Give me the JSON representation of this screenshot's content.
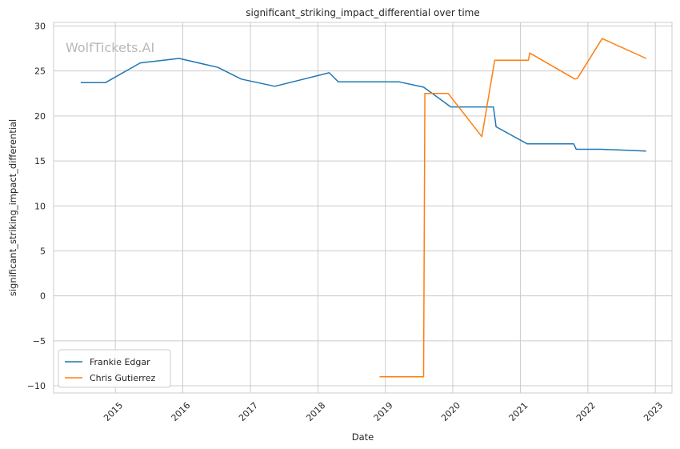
{
  "chart_data": {
    "type": "line",
    "title": "significant_striking_impact_differential over time",
    "xlabel": "Date",
    "ylabel": "significant_striking_impact_differential",
    "watermark": "WolfTickets.AI",
    "xlim": [
      "2014-02-01",
      "2023-04-01"
    ],
    "ylim": [
      -10.8,
      30.4
    ],
    "xticks": [
      "2015-01-01",
      "2016-01-01",
      "2017-01-01",
      "2018-01-01",
      "2019-01-01",
      "2020-01-01",
      "2021-01-01",
      "2022-01-01",
      "2023-01-01"
    ],
    "xtick_labels": [
      "2015",
      "2016",
      "2017",
      "2018",
      "2019",
      "2020",
      "2021",
      "2022",
      "2023"
    ],
    "yticks": [
      -10,
      -5,
      0,
      5,
      10,
      15,
      20,
      25,
      30
    ],
    "ytick_labels": [
      "−10",
      "−5",
      "0",
      "5",
      "10",
      "15",
      "20",
      "25",
      "30"
    ],
    "grid": true,
    "legend_position": "lower-left",
    "series": [
      {
        "name": "Frankie Edgar",
        "color": "#1f77b4",
        "x": [
          "2014-06-28",
          "2014-11-08",
          "2015-05-16",
          "2015-12-12",
          "2016-07-09",
          "2016-11-12",
          "2017-05-13",
          "2018-03-03",
          "2018-04-21",
          "2019-03-15",
          "2019-07-27",
          "2019-12-21",
          "2020-08-08",
          "2020-08-22",
          "2021-02-06",
          "2021-10-16",
          "2021-10-30",
          "2022-03-12",
          "2022-11-12"
        ],
        "values": [
          23.7,
          23.7,
          25.9,
          26.4,
          25.4,
          24.1,
          23.3,
          24.8,
          23.8,
          23.8,
          23.2,
          21.0,
          21.0,
          18.8,
          16.9,
          16.9,
          16.3,
          16.3,
          16.1
        ]
      },
      {
        "name": "Chris Gutierrez",
        "color": "#ff7f0e",
        "x": [
          "2018-12-01",
          "2019-07-27",
          "2019-08-03",
          "2019-12-07",
          "2020-06-06",
          "2020-08-15",
          "2021-02-13",
          "2021-02-20",
          "2021-10-23",
          "2021-11-06",
          "2022-03-19",
          "2022-11-12"
        ],
        "values": [
          -9.0,
          -9.0,
          22.5,
          22.5,
          17.7,
          26.2,
          26.2,
          27.0,
          24.1,
          24.2,
          28.6,
          26.4
        ]
      }
    ]
  }
}
